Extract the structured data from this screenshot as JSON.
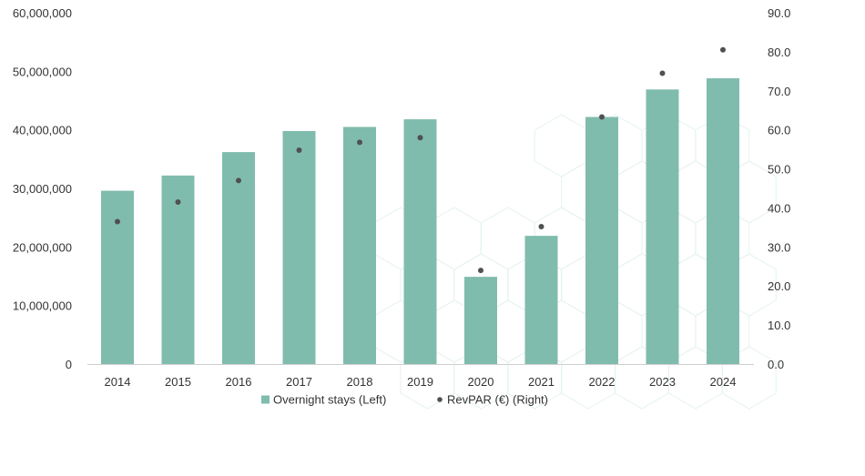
{
  "chart_data": {
    "type": "bar",
    "categories": [
      "2014",
      "2015",
      "2016",
      "2017",
      "2018",
      "2019",
      "2020",
      "2021",
      "2022",
      "2023",
      "2024"
    ],
    "series": [
      {
        "name": "Overnight stays (Left)",
        "type": "bar",
        "axis": "left",
        "color": "#80bcad",
        "values": [
          29600000,
          32200000,
          36200000,
          39800000,
          40500000,
          41800000,
          14900000,
          21900000,
          42200000,
          46900000,
          48800000
        ]
      },
      {
        "name": "RevPAR (€) (Right)",
        "type": "scatter",
        "axis": "right",
        "color": "#505050",
        "values": [
          36.5,
          41.5,
          47.0,
          54.8,
          56.8,
          58.0,
          24.0,
          35.2,
          63.3,
          74.5,
          80.5
        ]
      }
    ],
    "left_axis": {
      "ylim": [
        0,
        60000000
      ],
      "ticks": [
        0,
        10000000,
        20000000,
        30000000,
        40000000,
        50000000,
        60000000
      ],
      "tick_labels": [
        "0",
        "10,000,000",
        "20,000,000",
        "30,000,000",
        "40,000,000",
        "50,000,000",
        "60,000,000"
      ]
    },
    "right_axis": {
      "ylim": [
        0,
        90
      ],
      "ticks": [
        0,
        10,
        20,
        30,
        40,
        50,
        60,
        70,
        80,
        90
      ],
      "tick_labels": [
        "0.0",
        "10.0",
        "20.0",
        "30.0",
        "40.0",
        "50.0",
        "60.0",
        "70.0",
        "80.0",
        "90.0"
      ]
    },
    "grid": false,
    "legend_position": "bottom-center",
    "title": "",
    "xlabel": "",
    "ylabel": ""
  }
}
